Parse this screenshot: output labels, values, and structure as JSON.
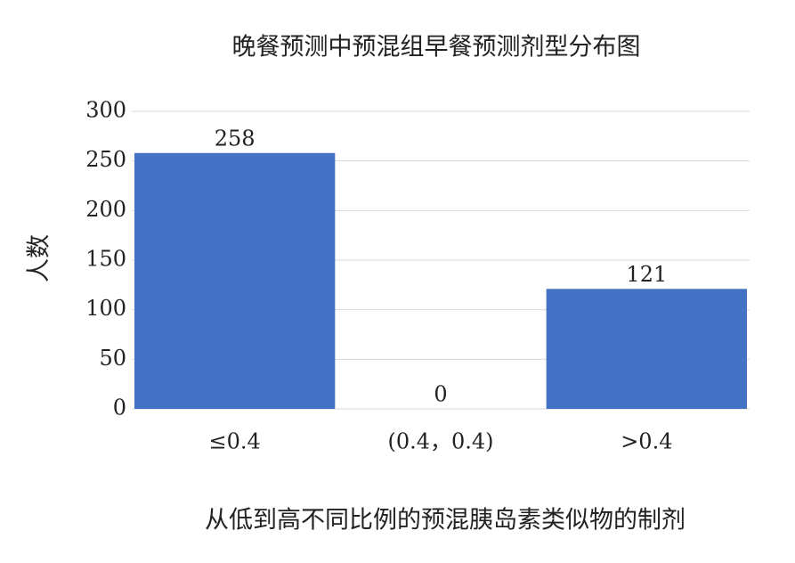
{
  "chart_data": {
    "type": "bar",
    "title": "晚餐预测中预混组早餐预测剂型分布图",
    "x_label": "从低到高不同比例的预混胰岛素类似物的制剂",
    "y_label": "人数",
    "categories": [
      "≤0.4",
      "(0.4，0.4)",
      ">0.4"
    ],
    "values": [
      258,
      0,
      121
    ],
    "color": "#4472c4",
    "ylim": [
      0,
      300
    ],
    "yticks": [
      0,
      50,
      100,
      150,
      200,
      250,
      300
    ],
    "grid": true
  }
}
